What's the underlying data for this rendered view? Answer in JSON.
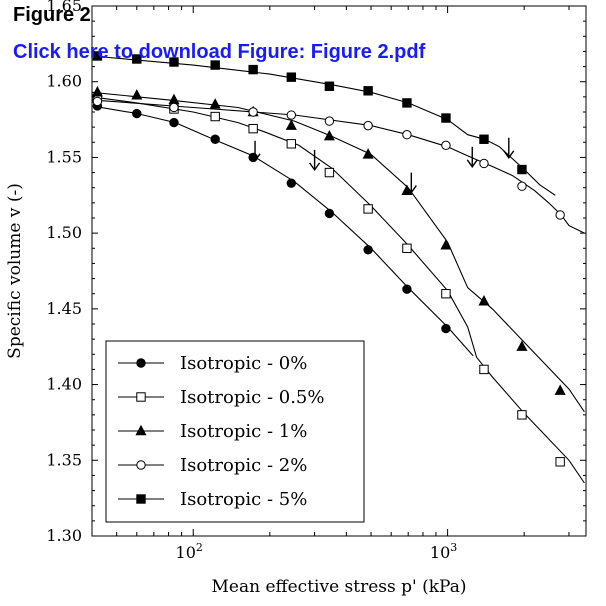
{
  "header": {
    "figure_label": "Figure 2",
    "download_link": "Click here to download Figure: Figure 2.pdf"
  },
  "chart_data": {
    "type": "line",
    "title": "",
    "xlabel": "Mean effective stress p' (kPa)",
    "ylabel": "Specific volume v (-)",
    "xscale": "log",
    "xlim": [
      40,
      3500
    ],
    "ylim": [
      1.3,
      1.65
    ],
    "x_ticks": [
      {
        "value": 100,
        "label": "10",
        "exp": "2"
      },
      {
        "value": 1000,
        "label": "10",
        "exp": "3"
      }
    ],
    "y_ticks": [
      {
        "value": 1.3,
        "label": "1.30"
      },
      {
        "value": 1.35,
        "label": "1.35"
      },
      {
        "value": 1.4,
        "label": "1.40"
      },
      {
        "value": 1.45,
        "label": "1.45"
      },
      {
        "value": 1.5,
        "label": "1.50"
      },
      {
        "value": 1.55,
        "label": "1.55"
      },
      {
        "value": 1.6,
        "label": "1.60"
      },
      {
        "value": 1.65,
        "label": "1.65"
      }
    ],
    "grid": false,
    "legend_position": "bottom-left",
    "series": [
      {
        "name": "Isotropic - 0%",
        "marker": "filled-circle",
        "line": [
          [
            40,
            1.584
          ],
          [
            60,
            1.579
          ],
          [
            85,
            1.573
          ],
          [
            120,
            1.562
          ],
          [
            172,
            1.551
          ],
          [
            250,
            1.534
          ],
          [
            350,
            1.514
          ],
          [
            500,
            1.49
          ],
          [
            700,
            1.464
          ],
          [
            1000,
            1.438
          ],
          [
            1260,
            1.419
          ]
        ],
        "points": [
          [
            42,
            1.584
          ],
          [
            60,
            1.579
          ],
          [
            84,
            1.573
          ],
          [
            122,
            1.562
          ],
          [
            172,
            1.55
          ],
          [
            243,
            1.533
          ],
          [
            343,
            1.513
          ],
          [
            487,
            1.489
          ],
          [
            692,
            1.463
          ],
          [
            985,
            1.437
          ]
        ]
      },
      {
        "name": "Isotropic - 0.5%",
        "marker": "open-square",
        "line": [
          [
            40,
            1.59
          ],
          [
            60,
            1.586
          ],
          [
            100,
            1.58
          ],
          [
            150,
            1.573
          ],
          [
            190,
            1.567
          ],
          [
            260,
            1.558
          ],
          [
            350,
            1.543
          ],
          [
            500,
            1.518
          ],
          [
            700,
            1.492
          ],
          [
            1000,
            1.462
          ],
          [
            1200,
            1.438
          ],
          [
            1300,
            1.418
          ],
          [
            1500,
            1.405
          ],
          [
            2000,
            1.381
          ],
          [
            3000,
            1.35
          ],
          [
            3450,
            1.335
          ]
        ],
        "points": [
          [
            42,
            1.589
          ],
          [
            84,
            1.582
          ],
          [
            122,
            1.577
          ],
          [
            172,
            1.569
          ],
          [
            243,
            1.559
          ],
          [
            343,
            1.54
          ],
          [
            487,
            1.516
          ],
          [
            692,
            1.49
          ],
          [
            985,
            1.46
          ],
          [
            1390,
            1.41
          ],
          [
            1960,
            1.38
          ],
          [
            2770,
            1.349
          ]
        ]
      },
      {
        "name": "Isotropic - 1%",
        "marker": "filled-triangle",
        "line": [
          [
            40,
            1.593
          ],
          [
            80,
            1.588
          ],
          [
            150,
            1.583
          ],
          [
            250,
            1.574
          ],
          [
            350,
            1.564
          ],
          [
            500,
            1.552
          ],
          [
            700,
            1.53
          ],
          [
            1000,
            1.494
          ],
          [
            1200,
            1.464
          ],
          [
            1500,
            1.45
          ],
          [
            2000,
            1.428
          ],
          [
            3000,
            1.397
          ],
          [
            3450,
            1.382
          ]
        ],
        "points": [
          [
            42,
            1.593
          ],
          [
            60,
            1.591
          ],
          [
            84,
            1.588
          ],
          [
            122,
            1.585
          ],
          [
            172,
            1.58
          ],
          [
            243,
            1.571
          ],
          [
            343,
            1.564
          ],
          [
            487,
            1.552
          ],
          [
            692,
            1.528
          ],
          [
            985,
            1.492
          ],
          [
            1390,
            1.455
          ],
          [
            1960,
            1.425
          ],
          [
            2770,
            1.396
          ]
        ]
      },
      {
        "name": "Isotropic - 2%",
        "marker": "open-circle",
        "line": [
          [
            40,
            1.588
          ],
          [
            100,
            1.583
          ],
          [
            250,
            1.578
          ],
          [
            500,
            1.571
          ],
          [
            700,
            1.565
          ],
          [
            1000,
            1.557
          ],
          [
            1200,
            1.551
          ],
          [
            1500,
            1.544
          ],
          [
            1800,
            1.538
          ],
          [
            2200,
            1.528
          ],
          [
            2500,
            1.52
          ],
          [
            2800,
            1.512
          ],
          [
            3000,
            1.505
          ],
          [
            3450,
            1.5
          ]
        ],
        "points": [
          [
            42,
            1.587
          ],
          [
            84,
            1.583
          ],
          [
            172,
            1.58
          ],
          [
            243,
            1.578
          ],
          [
            343,
            1.574
          ],
          [
            487,
            1.571
          ],
          [
            692,
            1.565
          ],
          [
            985,
            1.558
          ],
          [
            1390,
            1.546
          ],
          [
            1960,
            1.531
          ],
          [
            2770,
            1.512
          ]
        ]
      },
      {
        "name": "Isotropic - 5%",
        "marker": "filled-square",
        "line": [
          [
            40,
            1.617
          ],
          [
            100,
            1.611
          ],
          [
            200,
            1.605
          ],
          [
            350,
            1.598
          ],
          [
            500,
            1.593
          ],
          [
            700,
            1.586
          ],
          [
            1000,
            1.575
          ],
          [
            1200,
            1.565
          ],
          [
            1400,
            1.562
          ],
          [
            1600,
            1.557
          ],
          [
            2000,
            1.542
          ],
          [
            2300,
            1.532
          ],
          [
            2650,
            1.525
          ]
        ],
        "points": [
          [
            42,
            1.617
          ],
          [
            60,
            1.615
          ],
          [
            84,
            1.613
          ],
          [
            122,
            1.611
          ],
          [
            172,
            1.608
          ],
          [
            243,
            1.603
          ],
          [
            343,
            1.597
          ],
          [
            487,
            1.594
          ],
          [
            692,
            1.586
          ],
          [
            985,
            1.576
          ],
          [
            1390,
            1.562
          ],
          [
            1960,
            1.542
          ]
        ]
      }
    ],
    "annotations": [
      {
        "type": "arrow-down",
        "x": 175,
        "y": 1.561
      },
      {
        "type": "arrow-down",
        "x": 300,
        "y": 1.555
      },
      {
        "type": "arrow-down",
        "x": 720,
        "y": 1.54
      },
      {
        "type": "arrow-down",
        "x": 1250,
        "y": 1.557
      },
      {
        "type": "arrow-down",
        "x": 1740,
        "y": 1.563
      }
    ]
  }
}
